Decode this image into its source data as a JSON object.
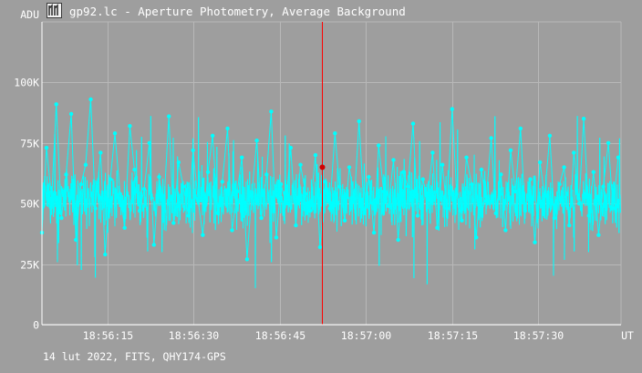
{
  "window": {
    "title": "gp92.lc - Aperture Photometry, Average Background",
    "icon": "photometry-app-icon"
  },
  "footer": {
    "info": "14 lut 2022, FITS, QHY174-GPS"
  },
  "colors": {
    "background": "#9e9e9e",
    "grid": "#b8b8b8",
    "series": "#00ffff",
    "cursor": "#ff0000",
    "cursor_marker": "#d00000",
    "text": "#ffffff"
  },
  "chart_data": {
    "type": "line",
    "title": "",
    "ylabel": "ADU",
    "xlabel": "UT",
    "y_unit": "ADU",
    "x_unit": "UT",
    "xlim": [
      "18:56:03.6",
      "18:57:44.4"
    ],
    "ylim": [
      0,
      125000
    ],
    "grid": true,
    "y_ticks": [
      {
        "value": 0,
        "label": "0"
      },
      {
        "value": 25000,
        "label": "25K"
      },
      {
        "value": 50000,
        "label": "50K"
      },
      {
        "value": 75000,
        "label": "75K"
      },
      {
        "value": 100000,
        "label": "100K"
      }
    ],
    "x_ticks": [
      {
        "value": "18:56:15",
        "label": "18:56:15"
      },
      {
        "value": "18:56:30",
        "label": "18:56:30"
      },
      {
        "value": "18:56:45",
        "label": "18:56:45"
      },
      {
        "value": "18:57:00",
        "label": "18:57:00"
      },
      {
        "value": "18:57:15",
        "label": "18:57:15"
      },
      {
        "value": "18:57:30",
        "label": "18:57:30"
      }
    ],
    "series": [
      {
        "name": "",
        "sample_interval_s": 0.05,
        "x": [
          "18:56:03.6",
          "18:56:04.4",
          "18:56:05.3",
          "18:56:06.1",
          "18:56:07.0",
          "18:56:07.8",
          "18:56:08.7",
          "18:56:09.5",
          "18:56:10.4",
          "18:56:11.2",
          "18:56:12.1",
          "18:56:12.9",
          "18:56:13.8",
          "18:56:14.6",
          "18:56:15.5",
          "18:56:16.3",
          "18:56:17.2",
          "18:56:18.0",
          "18:56:18.9",
          "18:56:19.7",
          "18:56:20.6",
          "18:56:21.4",
          "18:56:22.3",
          "18:56:23.1",
          "18:56:24.0",
          "18:56:24.8",
          "18:56:25.7",
          "18:56:26.5",
          "18:56:27.4",
          "18:56:28.2",
          "18:56:29.1",
          "18:56:29.9",
          "18:56:30.8",
          "18:56:31.6",
          "18:56:32.5",
          "18:56:33.3",
          "18:56:34.2",
          "18:56:35.0",
          "18:56:35.9",
          "18:56:36.7",
          "18:56:37.6",
          "18:56:38.4",
          "18:56:39.3",
          "18:56:40.1",
          "18:56:41.0",
          "18:56:41.8",
          "18:56:42.7",
          "18:56:43.5",
          "18:56:44.4",
          "18:56:45.2",
          "18:56:46.1",
          "18:56:46.9",
          "18:56:47.8",
          "18:56:48.6",
          "18:56:49.5",
          "18:56:50.3",
          "18:56:51.2",
          "18:56:52.0",
          "18:56:52.9",
          "18:56:53.7",
          "18:56:54.6",
          "18:56:55.4",
          "18:56:56.3",
          "18:56:57.1",
          "18:56:58.0",
          "18:56:58.8",
          "18:56:59.7",
          "18:57:00.5",
          "18:57:01.4",
          "18:57:02.2",
          "18:57:03.1",
          "18:57:03.9",
          "18:57:04.8",
          "18:57:05.6",
          "18:57:06.5",
          "18:57:07.3",
          "18:57:08.2",
          "18:57:09.0",
          "18:57:09.9",
          "18:57:10.7",
          "18:57:11.6",
          "18:57:12.4",
          "18:57:13.3",
          "18:57:14.1",
          "18:57:15.0",
          "18:57:15.8",
          "18:57:16.7",
          "18:57:17.5",
          "18:57:18.4",
          "18:57:19.2",
          "18:57:20.1",
          "18:57:20.9",
          "18:57:21.8",
          "18:57:22.6",
          "18:57:23.5",
          "18:57:24.3",
          "18:57:25.2",
          "18:57:26.0",
          "18:57:26.9",
          "18:57:27.7",
          "18:57:28.6",
          "18:57:29.4",
          "18:57:30.3",
          "18:57:31.1",
          "18:57:32.0",
          "18:57:32.8",
          "18:57:33.7",
          "18:57:34.5",
          "18:57:35.4",
          "18:57:36.2",
          "18:57:37.1",
          "18:57:37.9",
          "18:57:38.8",
          "18:57:39.6",
          "18:57:40.5",
          "18:57:41.3",
          "18:57:42.2",
          "18:57:43.0",
          "18:57:43.9"
        ],
        "y": [
          38000,
          73000,
          52000,
          91000,
          44000,
          62000,
          87000,
          35000,
          58000,
          66000,
          93000,
          48000,
          71000,
          29000,
          60000,
          79000,
          54000,
          40000,
          82000,
          64000,
          47000,
          56000,
          75000,
          33000,
          61000,
          49000,
          86000,
          42000,
          67000,
          57000,
          45000,
          72000,
          51000,
          37000,
          63000,
          78000,
          46000,
          59000,
          81000,
          39000,
          55000,
          69000,
          27000,
          53000,
          76000,
          44000,
          62000,
          88000,
          36000,
          58000,
          50000,
          73000,
          41000,
          66000,
          54000,
          47000,
          70000,
          32000,
          59000,
          48000,
          79000,
          57000,
          43000,
          65000,
          52000,
          84000,
          46000,
          61000,
          38000,
          74000,
          55000,
          49000,
          68000,
          35000,
          63000,
          57000,
          83000,
          45000,
          60000,
          52000,
          71000,
          40000,
          66000,
          48000,
          89000,
          54000,
          43000,
          69000,
          58000,
          36000,
          64000,
          51000,
          77000,
          46000,
          62000,
          39000,
          72000,
          55000,
          81000,
          47000,
          60000,
          34000,
          67000,
          53000,
          78000,
          44000,
          58000,
          65000,
          41000,
          71000,
          50000,
          85000,
          45000,
          63000,
          37000,
          57000,
          75000,
          48000,
          69000
        ]
      }
    ],
    "cursor": {
      "x": "18:56:52.3",
      "y": 65000
    }
  }
}
